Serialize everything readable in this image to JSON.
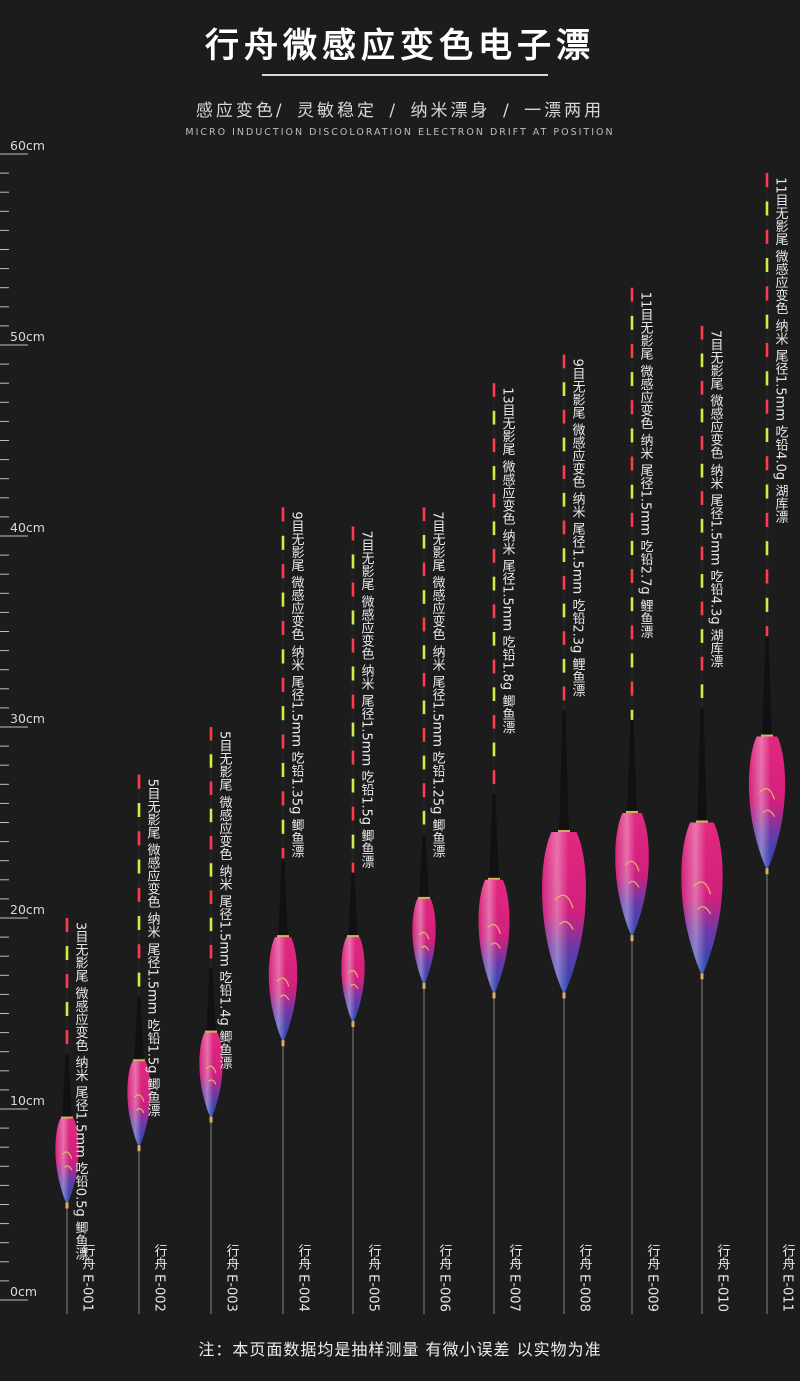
{
  "header": {
    "title": "行舟微感应变色电子漂",
    "subtitle": "感应变色/ 灵敏稳定 / 纳米漂身 / 一漂两用",
    "subtitle_en": "MICRO INDUCTION DISCOLORATION ELECTRON DRIFT AT POSITION"
  },
  "scale": {
    "unit": "cm",
    "labels": [
      "60cm",
      "50cm",
      "40cm",
      "30cm",
      "20cm",
      "10cm",
      "0cm"
    ],
    "max": 60
  },
  "colors": {
    "background": "#1c1c1d",
    "body_pink": "#e0277e",
    "body_blue": "#2c4fb8",
    "tip_red": "#ff3b4e",
    "tip_green": "#c8f046",
    "text": "#e8e8e8"
  },
  "floats": [
    {
      "model": "行舟 E-001",
      "spec": "3目无影尾  微感应变色  纳米  尾径1.5mm  吃铅0.5g  鲫鱼漂",
      "length_cm": 20,
      "body_top_cm": 9.5,
      "body_bottom_cm": 5
    },
    {
      "model": "行舟 E-002",
      "spec": "5目无影尾  微感应变色  纳米  尾径1.5mm  吃铅1.5g  鲫鱼漂",
      "length_cm": 27.5,
      "body_top_cm": 12.5,
      "body_bottom_cm": 8
    },
    {
      "model": "行舟 E-003",
      "spec": "5目无影尾  微感应变色  纳米  尾径1.5mm  吃铅1.4g  鲫鱼漂",
      "length_cm": 30,
      "body_top_cm": 14,
      "body_bottom_cm": 9.5
    },
    {
      "model": "行舟 E-004",
      "spec": "9目无影尾  微感应变色  纳米  尾径1.5mm  吃铅1.35g  鲫鱼漂",
      "length_cm": 41.5,
      "body_top_cm": 19,
      "body_bottom_cm": 13.5
    },
    {
      "model": "行舟 E-005",
      "spec": "7目无影尾  微感应变色  纳米  尾径1.5mm  吃铅1.5g  鲫鱼漂",
      "length_cm": 40.5,
      "body_top_cm": 19,
      "body_bottom_cm": 14.5
    },
    {
      "model": "行舟 E-006",
      "spec": "7目无影尾  微感应变色  纳米  尾径1.5mm  吃铅1.25g  鲫鱼漂",
      "length_cm": 41.5,
      "body_top_cm": 21,
      "body_bottom_cm": 16.5
    },
    {
      "model": "行舟 E-007",
      "spec": "13目无影尾  微感应变色  纳米  尾径1.5mm  吃铅1.8g  鲫鱼漂",
      "length_cm": 48,
      "body_top_cm": 22,
      "body_bottom_cm": 16
    },
    {
      "model": "行舟 E-008",
      "spec": "9目无影尾  微感应变色  纳米  尾径1.5mm  吃铅2.3g  鲤鱼漂",
      "length_cm": 49.5,
      "body_top_cm": 24.5,
      "body_bottom_cm": 16
    },
    {
      "model": "行舟 E-009",
      "spec": "11目无影尾  微感应变色  纳米  尾径1.5mm  吃铅2.7g  鲤鱼漂",
      "length_cm": 53,
      "body_top_cm": 25.5,
      "body_bottom_cm": 19
    },
    {
      "model": "行舟 E-010",
      "spec": "7目无影尾  微感应变色  纳米  尾径1.5mm  吃铅4.3g  湖库漂",
      "length_cm": 51,
      "body_top_cm": 25,
      "body_bottom_cm": 17
    },
    {
      "model": "行舟 E-011",
      "spec": "11目无影尾  微感应变色  纳米  尾径1.5mm  吃铅4.0g  湖库漂",
      "length_cm": 59,
      "body_top_cm": 29.5,
      "body_bottom_cm": 22.5
    }
  ],
  "footnote": "注：本页面数据均是抽样测量 有微小误差 以实物为准"
}
